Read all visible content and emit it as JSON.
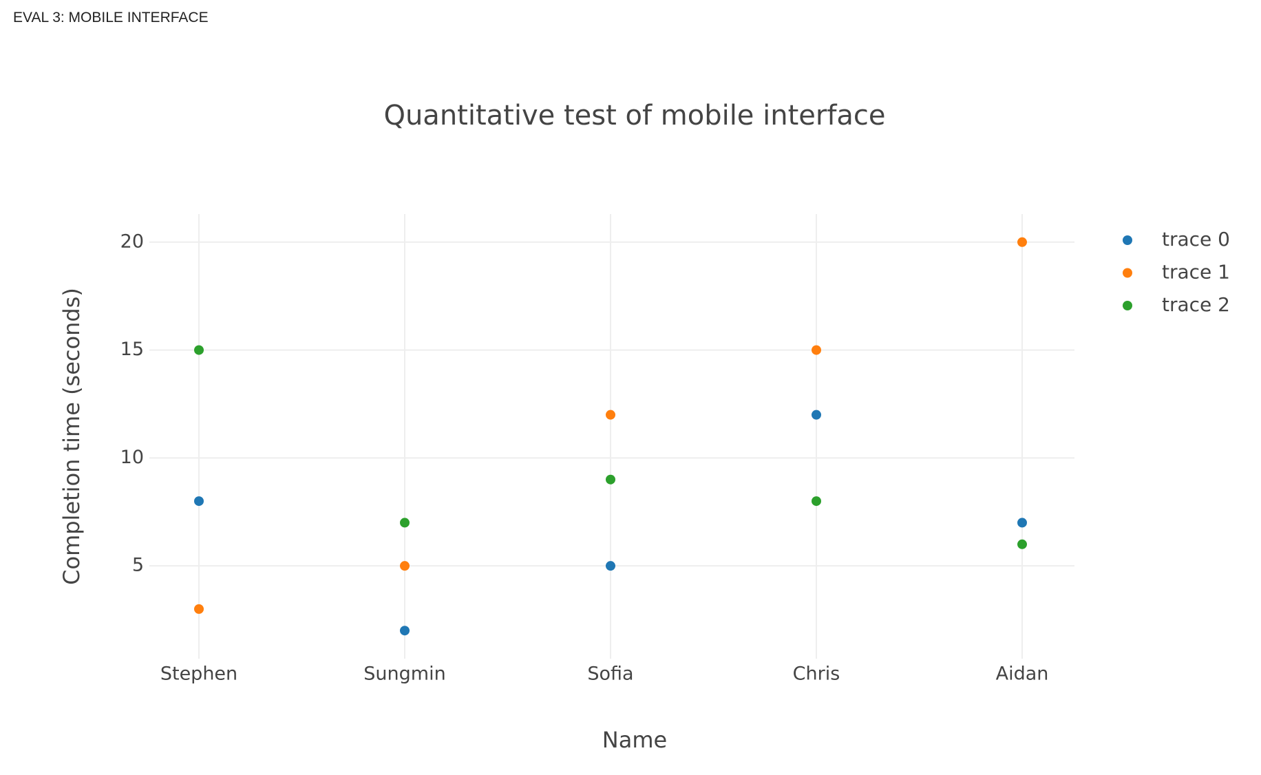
{
  "header": {
    "title": "EVAL 3: MOBILE INTERFACE"
  },
  "chart_data": {
    "type": "scatter",
    "title": "Quantitative test of mobile interface",
    "x_label": "Name",
    "y_label": "Completion time (seconds)",
    "categories": [
      "Stephen",
      "Sungmin",
      "Sofia",
      "Chris",
      "Aidan"
    ],
    "series": [
      {
        "name": "trace 0",
        "color": "#1f77b4",
        "values": [
          8,
          2,
          5,
          12,
          7
        ]
      },
      {
        "name": "trace 1",
        "color": "#ff7f0e",
        "values": [
          3,
          5,
          12,
          15,
          20
        ]
      },
      {
        "name": "trace 2",
        "color": "#2ca02c",
        "values": [
          15,
          7,
          9,
          8,
          6
        ]
      }
    ],
    "ylim": [
      0.7,
      21.3
    ],
    "yticks": [
      5,
      10,
      15,
      20
    ],
    "grid": true
  }
}
